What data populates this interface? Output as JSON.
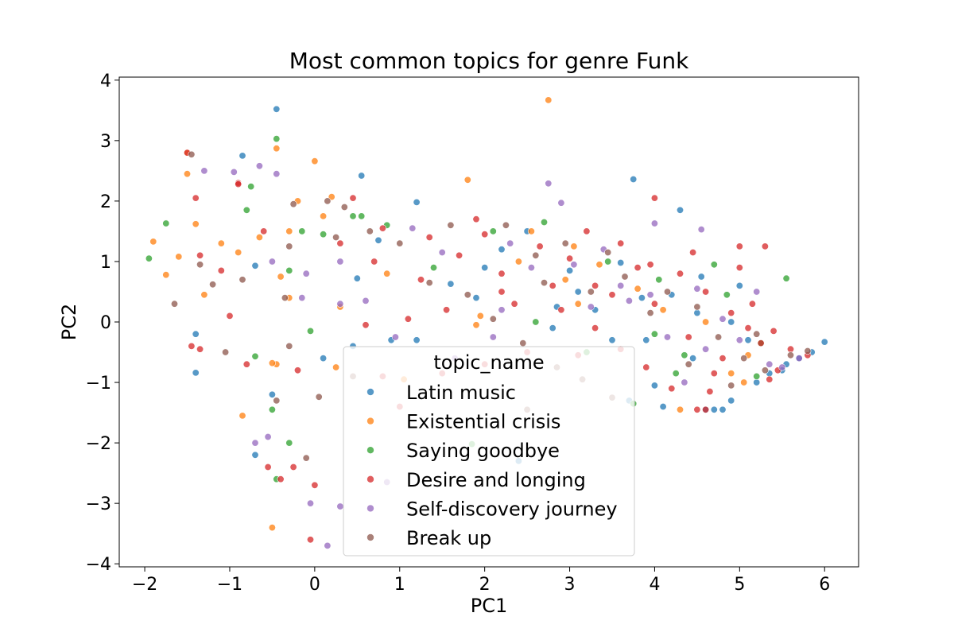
{
  "chart_data": {
    "type": "scatter",
    "title": "Most common topics for genre Funk",
    "xlabel": "PC1",
    "ylabel": "PC2",
    "xlim": [
      -2.3,
      6.4
    ],
    "ylim": [
      -4.05,
      4.05
    ],
    "xticks": [
      -2,
      -1,
      0,
      1,
      2,
      3,
      4,
      5,
      6
    ],
    "yticks": [
      -4,
      -3,
      -2,
      -1,
      0,
      1,
      2,
      3,
      4
    ],
    "grid": false,
    "legend": {
      "title": "topic_name",
      "placement": "lower-center"
    },
    "point_alpha": 0.75,
    "series": [
      {
        "name": "Latin music",
        "color": "#1f77b4",
        "points": [
          [
            -0.45,
            3.52
          ],
          [
            -0.85,
            2.75
          ],
          [
            0.55,
            2.42
          ],
          [
            1.2,
            1.98
          ],
          [
            3.75,
            2.36
          ],
          [
            4.3,
            1.85
          ],
          [
            -1.4,
            -0.2
          ],
          [
            -1.4,
            -0.84
          ],
          [
            -0.7,
            0.93
          ],
          [
            0.5,
            0.72
          ],
          [
            0.75,
            1.35
          ],
          [
            1.6,
            0.63
          ],
          [
            2.2,
            1.2
          ],
          [
            3.6,
            0.98
          ],
          [
            4.55,
            0.75
          ],
          [
            4.45,
            -0.6
          ],
          [
            4.6,
            -1.45
          ],
          [
            4.7,
            -1.45
          ],
          [
            4.8,
            -1.45
          ],
          [
            4.9,
            -1.3
          ],
          [
            5.2,
            -1.0
          ],
          [
            5.5,
            -0.8
          ],
          [
            5.7,
            -0.6
          ],
          [
            5.85,
            -0.5
          ],
          [
            6.0,
            -0.33
          ],
          [
            4.9,
            0.0
          ],
          [
            5.0,
            0.6
          ],
          [
            4.0,
            -1.05
          ],
          [
            3.5,
            -0.3
          ],
          [
            3.1,
            0.5
          ],
          [
            2.5,
            1.5
          ],
          [
            1.9,
            0.4
          ],
          [
            2.8,
            -0.1
          ],
          [
            3.9,
            -0.3
          ],
          [
            4.2,
            0.45
          ],
          [
            -0.5,
            -1.2
          ],
          [
            -0.7,
            -2.2
          ],
          [
            0.1,
            -0.6
          ],
          [
            0.9,
            -0.3
          ],
          [
            0.45,
            -0.4
          ],
          [
            2.4,
            -2.3
          ],
          [
            3.7,
            -1.3
          ],
          [
            4.1,
            -1.4
          ],
          [
            5.35,
            -0.85
          ],
          [
            5.55,
            -0.7
          ],
          [
            1.2,
            -0.3
          ],
          [
            2.85,
            0.25
          ],
          [
            3.3,
            0.2
          ],
          [
            4.5,
            0.15
          ],
          [
            5.1,
            -0.3
          ],
          [
            3.85,
            0.4
          ],
          [
            3.0,
            0.85
          ],
          [
            2.0,
            0.9
          ]
        ]
      },
      {
        "name": "Existential crisis",
        "color": "#ff7f0e",
        "points": [
          [
            2.75,
            3.67
          ],
          [
            -1.5,
            2.8
          ],
          [
            -1.5,
            2.45
          ],
          [
            -1.4,
            1.62
          ],
          [
            -1.9,
            1.33
          ],
          [
            -1.1,
            1.3
          ],
          [
            -0.45,
            2.87
          ],
          [
            0.0,
            2.66
          ],
          [
            -0.2,
            2.0
          ],
          [
            1.8,
            2.35
          ],
          [
            -0.3,
            1.5
          ],
          [
            0.2,
            2.07
          ],
          [
            -0.5,
            -3.4
          ],
          [
            -0.85,
            -1.55
          ],
          [
            -0.45,
            -0.7
          ],
          [
            -0.5,
            -0.68
          ],
          [
            0.25,
            -0.75
          ],
          [
            0.3,
            0.25
          ],
          [
            0.85,
            0.8
          ],
          [
            2.55,
            1.5
          ],
          [
            3.05,
            1.25
          ],
          [
            3.35,
            0.95
          ],
          [
            4.3,
            -1.45
          ],
          [
            4.1,
            0.2
          ],
          [
            5.05,
            -1.0
          ],
          [
            -1.6,
            1.08
          ],
          [
            -1.75,
            0.78
          ],
          [
            -1.3,
            0.45
          ],
          [
            -0.65,
            1.4
          ],
          [
            0.1,
            1.75
          ],
          [
            -0.4,
            0.75
          ],
          [
            -0.3,
            0.4
          ],
          [
            1.05,
            -0.95
          ],
          [
            1.95,
            0.1
          ],
          [
            2.95,
            0.7
          ],
          [
            3.8,
            0.55
          ],
          [
            4.6,
            0.0
          ],
          [
            4.9,
            -0.85
          ],
          [
            5.1,
            -0.55
          ],
          [
            -0.9,
            1.15
          ],
          [
            1.9,
            -0.05
          ],
          [
            2.4,
            1.0
          ],
          [
            3.1,
            0.3
          ]
        ]
      },
      {
        "name": "Saying goodbye",
        "color": "#2ca02c",
        "points": [
          [
            -0.45,
            3.03
          ],
          [
            -1.75,
            1.63
          ],
          [
            -1.95,
            1.05
          ],
          [
            -0.75,
            2.24
          ],
          [
            -0.8,
            1.85
          ],
          [
            -0.3,
            0.85
          ],
          [
            0.45,
            1.75
          ],
          [
            0.55,
            1.75
          ],
          [
            -0.5,
            -1.45
          ],
          [
            -0.7,
            -0.57
          ],
          [
            -0.45,
            -2.6
          ],
          [
            -0.3,
            -2.0
          ],
          [
            -0.05,
            -0.15
          ],
          [
            1.85,
            -2.02
          ],
          [
            2.7,
            1.65
          ],
          [
            3.75,
            -1.35
          ],
          [
            4.35,
            -0.55
          ],
          [
            4.7,
            0.95
          ],
          [
            5.55,
            0.72
          ],
          [
            3.45,
            1.0
          ],
          [
            2.1,
            1.5
          ],
          [
            4.0,
            -0.2
          ],
          [
            4.85,
            0.45
          ],
          [
            5.25,
            -0.35
          ],
          [
            0.85,
            1.6
          ],
          [
            -0.15,
            1.5
          ],
          [
            0.1,
            1.45
          ],
          [
            1.4,
            0.9
          ],
          [
            2.6,
            0.0
          ],
          [
            3.2,
            -0.5
          ],
          [
            4.25,
            -0.85
          ],
          [
            5.2,
            -0.9
          ],
          [
            4.05,
            0.7
          ]
        ]
      },
      {
        "name": "Desire and longing",
        "color": "#d62728",
        "points": [
          [
            -1.5,
            2.8
          ],
          [
            -1.4,
            2.05
          ],
          [
            -0.9,
            2.3
          ],
          [
            0.45,
            2.05
          ],
          [
            -1.35,
            1.1
          ],
          [
            -1.1,
            0.85
          ],
          [
            -1.45,
            -0.4
          ],
          [
            -1.35,
            -0.45
          ],
          [
            -0.8,
            -0.7
          ],
          [
            -0.2,
            -0.8
          ],
          [
            -1.0,
            0.1
          ],
          [
            -0.55,
            -2.4
          ],
          [
            -0.4,
            -2.6
          ],
          [
            -0.25,
            -2.4
          ],
          [
            0.0,
            -2.7
          ],
          [
            -0.05,
            -3.6
          ],
          [
            3.2,
            1.5
          ],
          [
            4.0,
            2.05
          ],
          [
            5.0,
            1.25
          ],
          [
            5.3,
            1.25
          ],
          [
            5.0,
            0.9
          ],
          [
            5.45,
            -0.8
          ],
          [
            4.6,
            -1.45
          ],
          [
            4.5,
            -1.45
          ],
          [
            3.8,
            0.9
          ],
          [
            2.8,
            0.6
          ],
          [
            2.2,
            0.8
          ],
          [
            1.55,
            0.2
          ],
          [
            1.1,
            0.05
          ],
          [
            0.6,
            -0.05
          ],
          [
            1.35,
            1.4
          ],
          [
            2.0,
            1.45
          ],
          [
            2.65,
            1.25
          ],
          [
            3.0,
            1.05
          ],
          [
            3.3,
            0.6
          ],
          [
            3.5,
            0.45
          ],
          [
            4.0,
            0.3
          ],
          [
            4.3,
            0.8
          ],
          [
            4.6,
            0.5
          ],
          [
            4.9,
            0.15
          ],
          [
            5.1,
            -0.1
          ],
          [
            5.25,
            -0.35
          ],
          [
            5.4,
            -0.15
          ],
          [
            5.6,
            -0.45
          ],
          [
            5.8,
            -0.55
          ],
          [
            4.7,
            -0.85
          ],
          [
            4.2,
            -1.1
          ],
          [
            3.9,
            -0.75
          ],
          [
            3.6,
            -0.45
          ],
          [
            3.3,
            -0.1
          ],
          [
            2.5,
            -0.5
          ],
          [
            2.0,
            -0.7
          ],
          [
            1.5,
            -0.85
          ],
          [
            0.8,
            -0.9
          ],
          [
            -0.6,
            1.5
          ],
          [
            -0.9,
            2.28
          ],
          [
            0.3,
            1.3
          ],
          [
            0.7,
            1.0
          ],
          [
            1.7,
            1.1
          ],
          [
            2.9,
            0.2
          ],
          [
            4.4,
            -0.25
          ],
          [
            5.15,
            0.3
          ],
          [
            4.45,
            1.15
          ],
          [
            3.6,
            1.3
          ],
          [
            1.0,
            -1.4
          ],
          [
            2.2,
            0.5
          ],
          [
            3.1,
            -0.55
          ],
          [
            4.65,
            -1.15
          ],
          [
            5.35,
            -0.95
          ],
          [
            0.8,
            1.55
          ],
          [
            1.9,
            1.7
          ],
          [
            2.35,
            0.3
          ],
          [
            1.25,
            0.7
          ],
          [
            4.8,
            -0.6
          ],
          [
            3.95,
            0.95
          ]
        ]
      },
      {
        "name": "Self-discovery journey",
        "color": "#9467bd",
        "points": [
          [
            -0.95,
            2.48
          ],
          [
            -1.3,
            2.5
          ],
          [
            -0.65,
            2.58
          ],
          [
            -0.45,
            2.45
          ],
          [
            2.75,
            2.29
          ],
          [
            2.9,
            1.97
          ],
          [
            4.0,
            1.63
          ],
          [
            4.55,
            1.53
          ],
          [
            -0.7,
            -2.0
          ],
          [
            -0.55,
            -1.9
          ],
          [
            -0.05,
            -3.0
          ],
          [
            0.3,
            -3.05
          ],
          [
            0.15,
            -3.7
          ],
          [
            1.65,
            -0.6
          ],
          [
            2.1,
            -0.25
          ],
          [
            3.25,
            0.25
          ],
          [
            3.7,
            0.35
          ],
          [
            4.5,
            0.55
          ],
          [
            5.2,
            0.5
          ],
          [
            4.8,
            0.05
          ],
          [
            5.0,
            -0.3
          ],
          [
            5.5,
            -0.75
          ],
          [
            5.7,
            -0.6
          ],
          [
            0.3,
            1.0
          ],
          [
            -0.1,
            0.8
          ],
          [
            -0.15,
            0.4
          ],
          [
            -0.5,
            1.0
          ],
          [
            0.6,
            0.35
          ],
          [
            0.3,
            0.3
          ],
          [
            0.95,
            -0.25
          ],
          [
            1.5,
            1.15
          ],
          [
            2.3,
            1.3
          ],
          [
            2.55,
            0.9
          ],
          [
            3.05,
            0.95
          ],
          [
            3.6,
            0.6
          ],
          [
            3.95,
            0.45
          ],
          [
            4.15,
            -0.25
          ],
          [
            4.6,
            -0.45
          ],
          [
            5.35,
            -0.7
          ],
          [
            0.85,
            -2.65
          ],
          [
            2.2,
            0.2
          ],
          [
            1.15,
            1.55
          ],
          [
            3.4,
            1.2
          ],
          [
            4.35,
            -1.0
          ]
        ]
      },
      {
        "name": "Break up",
        "color": "#8c564b",
        "points": [
          [
            -1.45,
            2.77
          ],
          [
            -0.25,
            1.95
          ],
          [
            0.15,
            2.0
          ],
          [
            0.35,
            1.9
          ],
          [
            -1.05,
            -0.5
          ],
          [
            -0.45,
            -1.3
          ],
          [
            -0.35,
            0.4
          ],
          [
            -0.1,
            -2.25
          ],
          [
            0.05,
            -1.24
          ],
          [
            -0.3,
            -0.4
          ],
          [
            -1.35,
            0.95
          ],
          [
            -1.65,
            0.3
          ],
          [
            2.25,
            1.6
          ],
          [
            2.6,
            1.1
          ],
          [
            2.95,
            1.3
          ],
          [
            3.45,
            1.15
          ],
          [
            3.65,
            0.75
          ],
          [
            4.15,
            0.5
          ],
          [
            4.5,
            0.25
          ],
          [
            4.75,
            -0.25
          ],
          [
            5.05,
            -0.6
          ],
          [
            5.3,
            -0.8
          ],
          [
            5.6,
            -0.55
          ],
          [
            5.8,
            -0.48
          ],
          [
            1.35,
            0.65
          ],
          [
            1.8,
            0.45
          ],
          [
            2.1,
            0.05
          ],
          [
            2.45,
            -0.35
          ],
          [
            2.85,
            -0.75
          ],
          [
            3.15,
            -0.95
          ],
          [
            3.5,
            -1.25
          ],
          [
            0.65,
            1.5
          ],
          [
            0.25,
            1.4
          ],
          [
            -0.3,
            1.25
          ],
          [
            1.0,
            1.3
          ],
          [
            1.6,
            1.6
          ],
          [
            2.7,
            0.65
          ],
          [
            3.25,
            0.5
          ],
          [
            3.95,
            0.15
          ],
          [
            4.4,
            -0.7
          ],
          [
            5.2,
            -0.2
          ],
          [
            0.45,
            -0.9
          ],
          [
            2.5,
            -1.45
          ],
          [
            4.9,
            -1.05
          ],
          [
            -0.85,
            0.7
          ],
          [
            -1.2,
            0.62
          ]
        ]
      }
    ]
  }
}
